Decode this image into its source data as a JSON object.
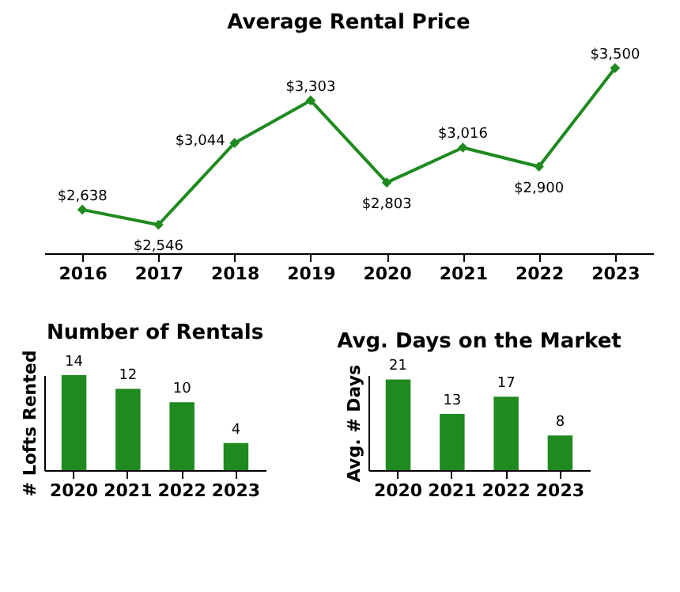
{
  "chart_data": [
    {
      "type": "line",
      "title": "Average Rental Price",
      "categories": [
        "2016",
        "2017",
        "2018",
        "2019",
        "2020",
        "2021",
        "2022",
        "2023"
      ],
      "values": [
        2638,
        2546,
        3044,
        3303,
        2803,
        3016,
        2900,
        3500
      ],
      "value_labels": [
        "$2,638",
        "$2,546",
        "$3,044",
        "$3,303",
        "$2,803",
        "$3,016",
        "$2,900",
        "$3,500"
      ],
      "color": "#1f8a1f",
      "marker": "diamond",
      "grid": false
    },
    {
      "type": "bar",
      "title": "Number of Rentals",
      "ylabel": "# Lofts Rented",
      "categories": [
        "2020",
        "2021",
        "2022",
        "2023"
      ],
      "values": [
        14,
        12,
        10,
        4
      ],
      "color": "#1f8a1f",
      "data_labels": true,
      "grid": false
    },
    {
      "type": "bar",
      "title": "Avg. Days on the Market",
      "ylabel": "Avg. # Days",
      "categories": [
        "2020",
        "2021",
        "2022",
        "2023"
      ],
      "values": [
        21,
        13,
        17,
        8
      ],
      "color": "#1f8a1f",
      "data_labels": true,
      "grid": false
    }
  ]
}
